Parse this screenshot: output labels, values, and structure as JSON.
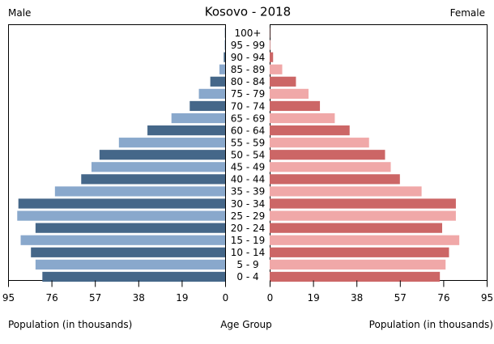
{
  "chart_data": {
    "type": "bar",
    "title": "Kosovo - 2018",
    "left_label": "Male",
    "right_label": "Female",
    "xlabel_left": "Population (in thousands)",
    "xlabel_center": "Age Group",
    "xlabel_right": "Population (in thousands)",
    "xlim": [
      0,
      95
    ],
    "ticks": [
      95,
      76,
      57,
      38,
      19,
      0
    ],
    "ticks_right": [
      0,
      19,
      38,
      57,
      76,
      95
    ],
    "categories": [
      "100+",
      "95 - 99",
      "90 - 94",
      "85 - 89",
      "80 - 84",
      "75 - 79",
      "70 - 74",
      "65 - 69",
      "60 - 64",
      "55 - 59",
      "50 - 54",
      "45 - 49",
      "40 - 44",
      "35 - 39",
      "30 - 34",
      "25 - 29",
      "20 - 24",
      "15 - 19",
      "10 - 14",
      "5 - 9",
      "0 - 4"
    ],
    "series": [
      {
        "name": "Male",
        "values": [
          0.1,
          0.2,
          0.6,
          2.5,
          6.5,
          11.5,
          15.5,
          23.5,
          34,
          46.5,
          55,
          58.5,
          63,
          74.5,
          90.5,
          91,
          83,
          89.5,
          85,
          83,
          80
        ]
      },
      {
        "name": "Female",
        "values": [
          0.1,
          0.3,
          1.5,
          5.5,
          11.5,
          17,
          22,
          28.5,
          35,
          43.5,
          50.5,
          53,
          57,
          66.5,
          81.5,
          81.5,
          75.5,
          83,
          78.5,
          77,
          74.5
        ]
      }
    ],
    "colors": {
      "male_dark": "#456789",
      "male_light": "#89a8cc",
      "female_dark": "#cc6666",
      "female_light": "#f0a8a8"
    }
  }
}
